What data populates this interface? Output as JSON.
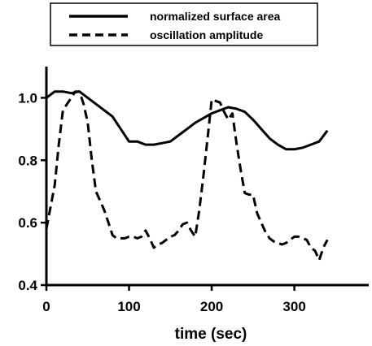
{
  "chart_data": {
    "type": "line",
    "title": "",
    "xlabel": "time (sec)",
    "ylabel": "",
    "xlim": [
      0,
      390
    ],
    "ylim": [
      0.4,
      1.1
    ],
    "xticks": [
      0,
      100,
      200,
      300
    ],
    "yticks": [
      0.4,
      0.6,
      0.8,
      1.0
    ],
    "xtick_labels": [
      "0",
      "100",
      "200",
      "300"
    ],
    "ytick_labels": [
      "0.4",
      "0.6",
      "0.8",
      "1.0"
    ],
    "grid": false,
    "legend_position": "top",
    "series": [
      {
        "name": "normalized surface area",
        "style": "solid",
        "x": [
          0,
          10,
          20,
          30,
          40,
          50,
          60,
          70,
          80,
          90,
          100,
          110,
          120,
          130,
          140,
          150,
          160,
          170,
          180,
          190,
          200,
          210,
          220,
          230,
          240,
          250,
          260,
          270,
          280,
          290,
          300,
          310,
          320,
          330,
          340
        ],
        "y": [
          1.0,
          1.02,
          1.02,
          1.015,
          1.02,
          1.0,
          0.98,
          0.96,
          0.94,
          0.9,
          0.86,
          0.86,
          0.85,
          0.85,
          0.855,
          0.86,
          0.88,
          0.9,
          0.92,
          0.935,
          0.95,
          0.96,
          0.97,
          0.965,
          0.955,
          0.93,
          0.9,
          0.87,
          0.85,
          0.835,
          0.835,
          0.84,
          0.85,
          0.86,
          0.895
        ]
      },
      {
        "name": "oscillation amplitude",
        "style": "dashed",
        "x": [
          0,
          5,
          10,
          15,
          20,
          25,
          30,
          35,
          40,
          45,
          50,
          55,
          60,
          65,
          70,
          75,
          80,
          85,
          90,
          95,
          100,
          105,
          110,
          115,
          120,
          125,
          130,
          135,
          140,
          145,
          150,
          155,
          160,
          165,
          170,
          175,
          180,
          185,
          190,
          195,
          200,
          205,
          210,
          215,
          220,
          225,
          230,
          235,
          240,
          245,
          250,
          255,
          260,
          265,
          270,
          275,
          280,
          285,
          290,
          295,
          300,
          305,
          310,
          315,
          320,
          325,
          330,
          335,
          340
        ],
        "y": [
          0.58,
          0.65,
          0.72,
          0.85,
          0.96,
          0.98,
          1.0,
          1.02,
          1.02,
          0.98,
          0.92,
          0.8,
          0.7,
          0.67,
          0.64,
          0.6,
          0.56,
          0.55,
          0.55,
          0.55,
          0.555,
          0.555,
          0.55,
          0.555,
          0.575,
          0.55,
          0.52,
          0.53,
          0.535,
          0.545,
          0.555,
          0.56,
          0.575,
          0.595,
          0.6,
          0.575,
          0.555,
          0.64,
          0.75,
          0.87,
          0.995,
          0.99,
          0.985,
          0.955,
          0.93,
          0.95,
          0.855,
          0.77,
          0.695,
          0.69,
          0.69,
          0.63,
          0.6,
          0.57,
          0.55,
          0.54,
          0.535,
          0.53,
          0.535,
          0.545,
          0.555,
          0.555,
          0.55,
          0.545,
          0.52,
          0.51,
          0.48,
          0.52,
          0.545
        ]
      }
    ]
  }
}
